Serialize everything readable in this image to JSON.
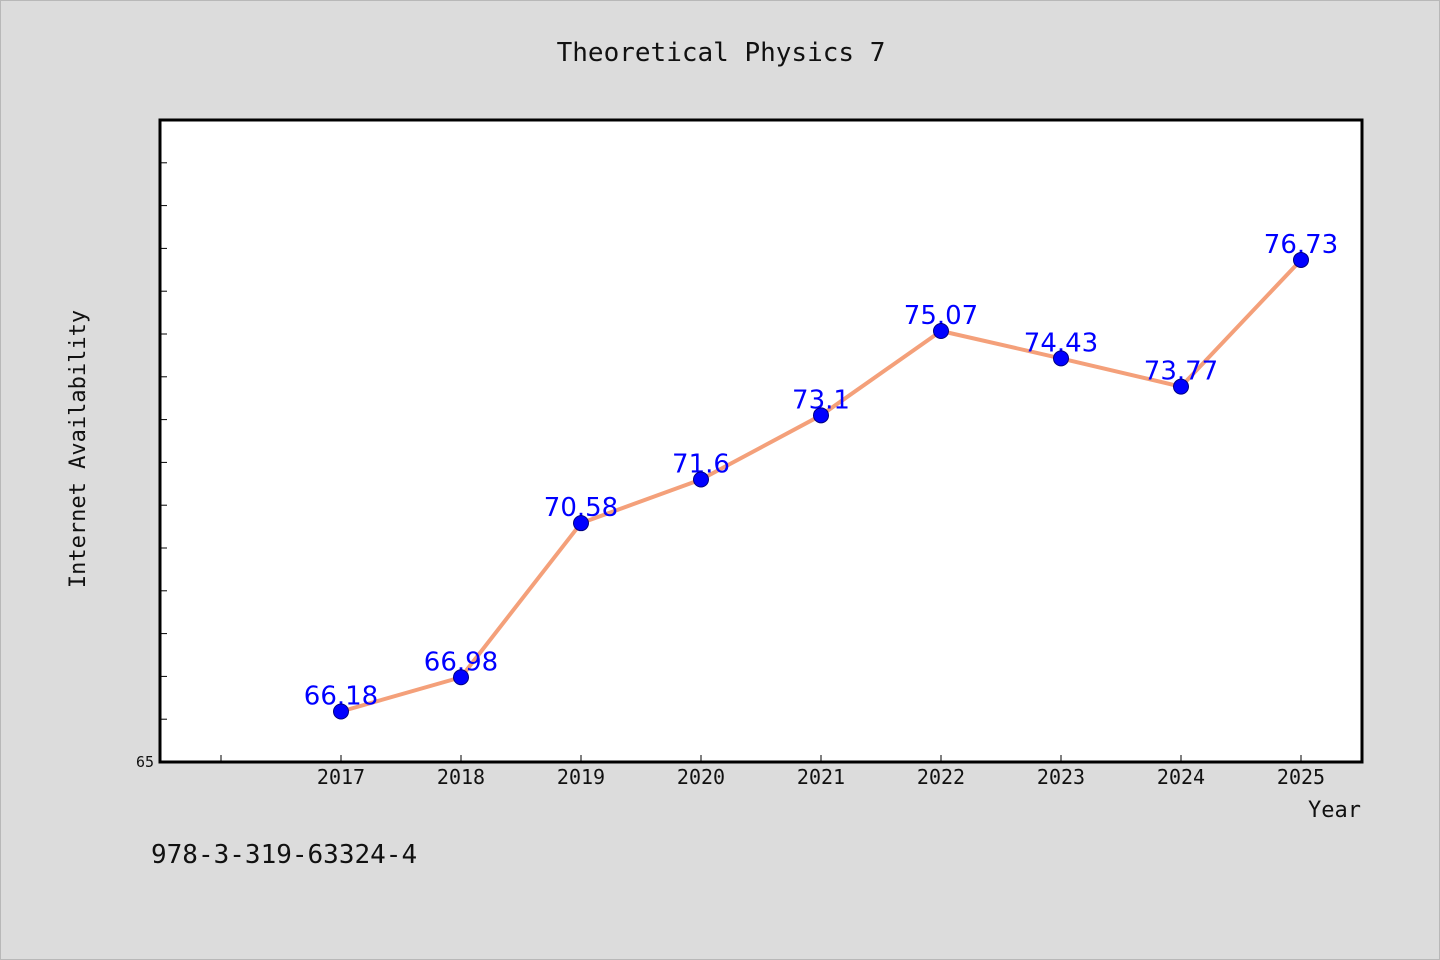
{
  "chart_data": {
    "type": "line",
    "title": "Theoretical Physics 7",
    "xlabel": "Year",
    "ylabel": "Internet Availability",
    "categories": [
      "2017",
      "2018",
      "2019",
      "2020",
      "2021",
      "2022",
      "2023",
      "2024",
      "2025"
    ],
    "series": [
      {
        "values": [
          66.18,
          66.98,
          70.58,
          71.6,
          73.1,
          75.07,
          74.43,
          73.77,
          76.73
        ],
        "labels": [
          "66.18",
          "66.98",
          "70.58",
          "71.6",
          "73.1",
          "75.07",
          "74.43",
          "73.77",
          "76.73"
        ],
        "line_color": "#f4a07a",
        "marker_color": "#0000ff"
      }
    ],
    "ylim": [
      65,
      80
    ],
    "y_tick_labels": [
      "65"
    ],
    "grid": false,
    "legend": "none"
  },
  "footer": {
    "isbn": "978-3-319-63324-4"
  }
}
